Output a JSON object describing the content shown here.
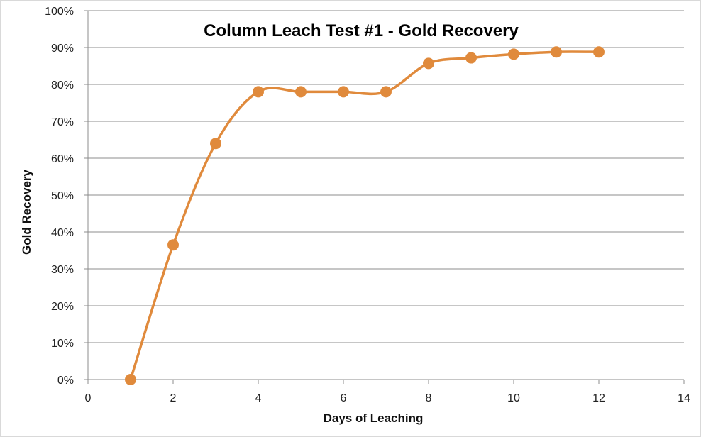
{
  "chart_data": {
    "type": "line",
    "title": "Column Leach Test #1 - Gold Recovery",
    "xlabel": "Days of Leaching",
    "ylabel": "Gold Recovery",
    "xlim": [
      0,
      14
    ],
    "ylim": [
      0,
      1
    ],
    "x_ticks": [
      "0",
      "2",
      "4",
      "6",
      "8",
      "10",
      "12",
      "14"
    ],
    "y_ticks": [
      "0%",
      "10%",
      "20%",
      "30%",
      "40%",
      "50%",
      "60%",
      "70%",
      "80%",
      "90%",
      "100%"
    ],
    "grid": "horizontal",
    "smoothed": true,
    "series": [
      {
        "color": "#E08A3C",
        "x": [
          1,
          2,
          3,
          4,
          5,
          6,
          7,
          8,
          9,
          10,
          11,
          12
        ],
        "y": [
          0.0,
          0.365,
          0.64,
          0.78,
          0.78,
          0.78,
          0.78,
          0.857,
          0.872,
          0.882,
          0.888,
          0.888
        ]
      }
    ]
  }
}
